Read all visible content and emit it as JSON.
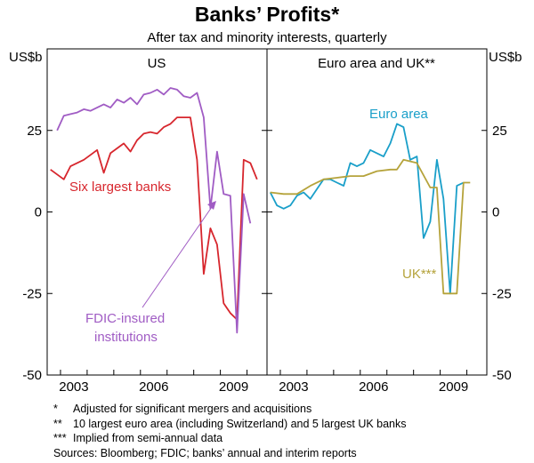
{
  "chart_data": {
    "type": "line",
    "title": "Banks’ Profits*",
    "subtitle": "After tax and minority interests, quarterly",
    "ylabel_left": "US$b",
    "ylabel_right": "US$b",
    "ylim": [
      -50,
      50
    ],
    "yticks": [
      25,
      0,
      -25,
      -50
    ],
    "xlim": [
      2001.5,
      2009.75
    ],
    "xticks": [
      2003,
      2006,
      2009
    ],
    "panels": [
      {
        "title": "US",
        "series": [
          {
            "name": "Six largest banks",
            "color": "#d7262d",
            "x": [
              2001.625,
              2001.875,
              2002.125,
              2002.375,
              2002.625,
              2002.875,
              2003.125,
              2003.375,
              2003.625,
              2003.875,
              2004.125,
              2004.375,
              2004.625,
              2004.875,
              2005.125,
              2005.375,
              2005.625,
              2005.875,
              2006.125,
              2006.375,
              2006.625,
              2006.875,
              2007.125,
              2007.375,
              2007.625,
              2007.875,
              2008.125,
              2008.375,
              2008.625,
              2008.875,
              2009.125,
              2009.375
            ],
            "y": [
              13,
              11.5,
              10,
              14,
              15,
              16,
              17.5,
              19,
              12,
              18,
              19.5,
              21,
              18.5,
              22,
              24,
              24.5,
              24,
              26,
              27,
              29,
              29,
              29,
              16,
              -19,
              -5,
              -10,
              -28,
              -31,
              -33,
              16,
              15,
              10
            ]
          },
          {
            "name": "FDIC-insured institutions",
            "color": "#a05cc4",
            "x": [
              2001.875,
              2002.125,
              2002.375,
              2002.625,
              2002.875,
              2003.125,
              2003.375,
              2003.625,
              2003.875,
              2004.125,
              2004.375,
              2004.625,
              2004.875,
              2005.125,
              2005.375,
              2005.625,
              2005.875,
              2006.125,
              2006.375,
              2006.625,
              2006.875,
              2007.125,
              2007.375,
              2007.625,
              2007.875,
              2008.125,
              2008.375,
              2008.625,
              2008.875,
              2009.125
            ],
            "y": [
              25,
              29.5,
              30,
              30.5,
              31.5,
              31,
              32,
              33,
              32,
              34.5,
              33.5,
              35,
              33,
              36,
              36.5,
              37.5,
              36,
              38,
              37.5,
              35.5,
              35,
              36.5,
              29,
              1,
              18.5,
              5.5,
              5,
              -37,
              5.5,
              -3.5
            ]
          }
        ]
      },
      {
        "title": "Euro area and UK**",
        "series": [
          {
            "name": "Euro area",
            "color": "#1a9fc9",
            "x": [
              2001.625,
              2001.875,
              2002.125,
              2002.375,
              2002.625,
              2002.875,
              2003.125,
              2003.375,
              2003.625,
              2003.875,
              2004.125,
              2004.375,
              2004.625,
              2004.875,
              2005.125,
              2005.375,
              2005.625,
              2005.875,
              2006.125,
              2006.375,
              2006.625,
              2006.875,
              2007.125,
              2007.375,
              2007.625,
              2007.875,
              2008.125,
              2008.375,
              2008.625,
              2008.875,
              2009.125
            ],
            "y": [
              6,
              2,
              1,
              2,
              5,
              6,
              4,
              7,
              10,
              10,
              9,
              8,
              15,
              14,
              15,
              19,
              18,
              17,
              21,
              27,
              26,
              16,
              17,
              -8,
              -3,
              16,
              4,
              -25,
              8,
              9,
              null
            ]
          },
          {
            "name": "UK***",
            "color": "#b5a33b",
            "x": [
              2001.625,
              2002.125,
              2002.625,
              2003.125,
              2003.625,
              2004.125,
              2004.625,
              2005.125,
              2005.625,
              2006.125,
              2006.375,
              2006.625,
              2007.125,
              2007.625,
              2007.875,
              2008.125,
              2008.625,
              2008.875,
              2009.125
            ],
            "y": [
              6,
              5.5,
              5.5,
              8,
              10,
              10.5,
              11,
              11,
              12.5,
              13,
              13,
              16,
              15,
              7.5,
              7.5,
              -25,
              -25,
              9,
              9
            ]
          }
        ]
      }
    ],
    "annotations": {
      "six_largest": "Six largest banks",
      "fdic_line1": "FDIC-insured",
      "fdic_line2": "institutions",
      "euro_area": "Euro area",
      "uk": "UK***"
    }
  },
  "notes": [
    {
      "mark": "*",
      "text": "Adjusted for significant mergers and acquisitions"
    },
    {
      "mark": "**",
      "text": "10 largest euro area (including Switzerland) and 5 largest UK banks"
    },
    {
      "mark": "***",
      "text": "Implied from semi-annual data"
    }
  ],
  "sources": "Sources: Bloomberg; FDIC; banks’ annual and interim reports"
}
